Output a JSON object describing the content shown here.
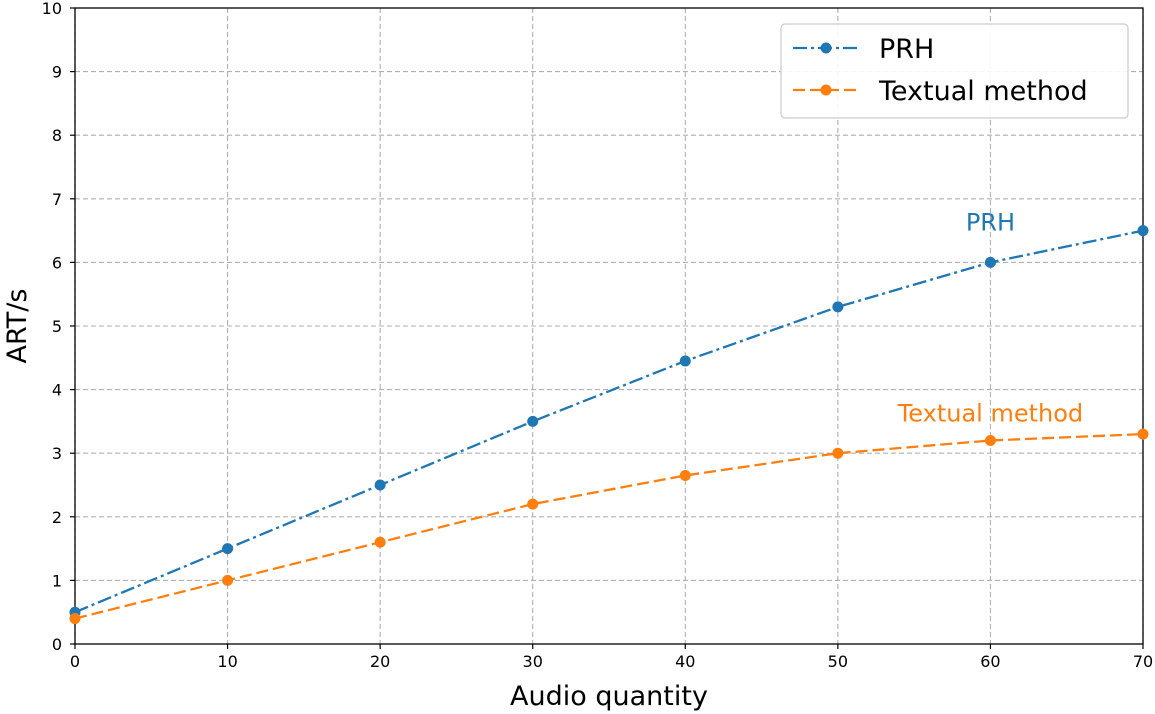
{
  "chart_data": {
    "type": "line",
    "xlabel": "Audio quantity",
    "ylabel": "ART/s",
    "xlim": [
      0,
      70
    ],
    "ylim": [
      0,
      10
    ],
    "xticks": [
      0,
      10,
      20,
      30,
      40,
      50,
      60,
      70
    ],
    "yticks": [
      0,
      1,
      2,
      3,
      4,
      5,
      6,
      7,
      8,
      9,
      10
    ],
    "grid": true,
    "legend_position": "top-right",
    "x": [
      0,
      10,
      20,
      30,
      40,
      50,
      60,
      70
    ],
    "series": [
      {
        "name": "PRH",
        "values": [
          0.5,
          1.5,
          2.5,
          3.5,
          4.45,
          5.3,
          6.0,
          6.5
        ],
        "color": "#1f77b4",
        "line_style": "dash-dot",
        "marker": "circle"
      },
      {
        "name": "Textual method",
        "values": [
          0.4,
          1.0,
          1.6,
          2.2,
          2.65,
          3.0,
          3.2,
          3.3
        ],
        "color": "#ff7f0e",
        "line_style": "dashed",
        "marker": "circle"
      }
    ],
    "annotations": [
      {
        "text": "PRH",
        "x": 60,
        "y": 6.5,
        "series": 0
      },
      {
        "text": "Textual method",
        "x": 60,
        "y": 3.5,
        "series": 1
      }
    ]
  }
}
